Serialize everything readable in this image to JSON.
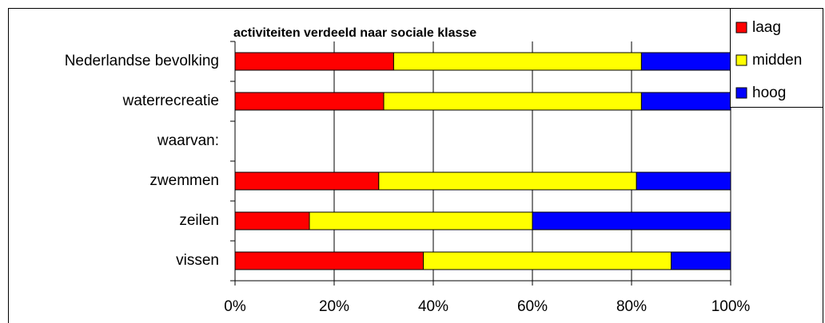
{
  "chart_data": {
    "type": "stacked-bar-horizontal",
    "title": "activiteiten verdeeld naar sociale klasse",
    "categories": [
      "Nederlandse bevolking",
      "waterrecreatie",
      "waarvan:",
      "zwemmen",
      "zeilen",
      "vissen"
    ],
    "series": [
      {
        "name": "laag",
        "color": "#ff0000",
        "values": [
          32,
          30,
          null,
          29,
          15,
          38
        ]
      },
      {
        "name": "midden",
        "color": "#ffff00",
        "values": [
          50,
          52,
          null,
          52,
          45,
          50
        ]
      },
      {
        "name": "hoog",
        "color": "#0000ff",
        "values": [
          18,
          18,
          null,
          19,
          40,
          12
        ]
      }
    ],
    "xlim": [
      0,
      100
    ],
    "xticks": [
      {
        "value": 0,
        "label": "0%"
      },
      {
        "value": 20,
        "label": "20%"
      },
      {
        "value": 40,
        "label": "40%"
      },
      {
        "value": 60,
        "label": "60%"
      },
      {
        "value": 80,
        "label": "80%"
      },
      {
        "value": 100,
        "label": "100%"
      }
    ],
    "grid": true,
    "legend": "top-right"
  }
}
